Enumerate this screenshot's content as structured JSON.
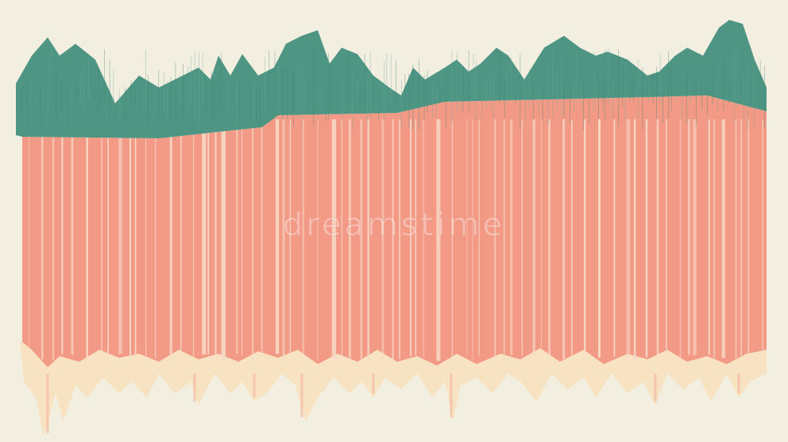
{
  "watermark": "dreamstime"
}
